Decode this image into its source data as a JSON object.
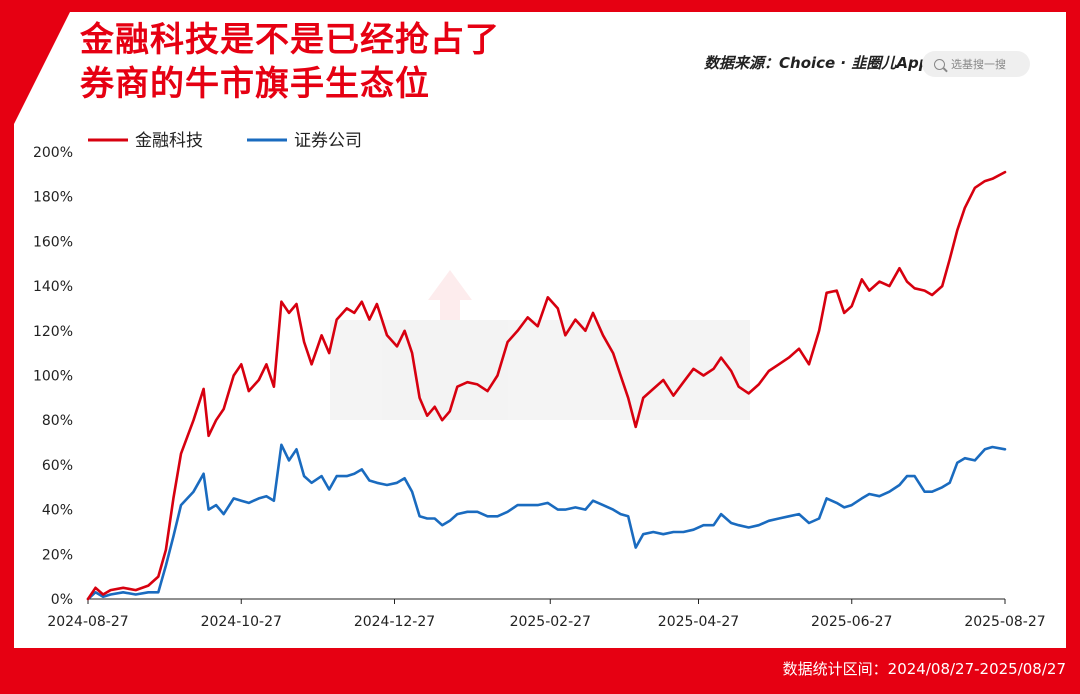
{
  "header": {
    "title_line1": "金融科技是不是已经抢占了",
    "title_line2": "券商的牛市旗手生态位",
    "source": "数据来源：Choice · 韭圈儿App",
    "search_placeholder": "选基搜一搜"
  },
  "footer": {
    "range": "数据统计区间：2024/08/27-2025/08/27"
  },
  "chart_data": {
    "type": "line",
    "x_ticks": [
      "2024-08-27",
      "2024-10-27",
      "2024-12-27",
      "2025-02-27",
      "2025-04-27",
      "2025-06-27",
      "2025-08-27"
    ],
    "y_ticks": [
      "0%",
      "20%",
      "40%",
      "60%",
      "80%",
      "100%",
      "120%",
      "140%",
      "160%",
      "180%",
      "200%"
    ],
    "ylim": [
      0,
      200
    ],
    "legend_position": "top-left",
    "series": [
      {
        "name": "金融科技",
        "color": "#d7000f",
        "points": [
          [
            "2024-08-27",
            0
          ],
          [
            "2024-08-30",
            5
          ],
          [
            "2024-09-02",
            2
          ],
          [
            "2024-09-05",
            4
          ],
          [
            "2024-09-10",
            5
          ],
          [
            "2024-09-15",
            4
          ],
          [
            "2024-09-20",
            6
          ],
          [
            "2024-09-24",
            10
          ],
          [
            "2024-09-27",
            22
          ],
          [
            "2024-09-30",
            45
          ],
          [
            "2024-10-03",
            65
          ],
          [
            "2024-10-08",
            80
          ],
          [
            "2024-10-12",
            94
          ],
          [
            "2024-10-14",
            73
          ],
          [
            "2024-10-17",
            80
          ],
          [
            "2024-10-20",
            85
          ],
          [
            "2024-10-24",
            100
          ],
          [
            "2024-10-27",
            105
          ],
          [
            "2024-10-30",
            93
          ],
          [
            "2024-11-03",
            98
          ],
          [
            "2024-11-06",
            105
          ],
          [
            "2024-11-09",
            95
          ],
          [
            "2024-11-12",
            133
          ],
          [
            "2024-11-15",
            128
          ],
          [
            "2024-11-18",
            132
          ],
          [
            "2024-11-21",
            115
          ],
          [
            "2024-11-24",
            105
          ],
          [
            "2024-11-28",
            118
          ],
          [
            "2024-12-01",
            110
          ],
          [
            "2024-12-04",
            125
          ],
          [
            "2024-12-08",
            130
          ],
          [
            "2024-12-11",
            128
          ],
          [
            "2024-12-14",
            133
          ],
          [
            "2024-12-17",
            125
          ],
          [
            "2024-12-20",
            132
          ],
          [
            "2024-12-24",
            118
          ],
          [
            "2024-12-28",
            113
          ],
          [
            "2024-12-31",
            120
          ],
          [
            "2025-01-03",
            110
          ],
          [
            "2025-01-06",
            90
          ],
          [
            "2025-01-09",
            82
          ],
          [
            "2025-01-12",
            86
          ],
          [
            "2025-01-15",
            80
          ],
          [
            "2025-01-18",
            84
          ],
          [
            "2025-01-21",
            95
          ],
          [
            "2025-01-25",
            97
          ],
          [
            "2025-01-29",
            96
          ],
          [
            "2025-02-02",
            93
          ],
          [
            "2025-02-06",
            100
          ],
          [
            "2025-02-10",
            115
          ],
          [
            "2025-02-14",
            120
          ],
          [
            "2025-02-18",
            126
          ],
          [
            "2025-02-22",
            122
          ],
          [
            "2025-02-26",
            135
          ],
          [
            "2025-03-02",
            130
          ],
          [
            "2025-03-05",
            118
          ],
          [
            "2025-03-09",
            125
          ],
          [
            "2025-03-13",
            120
          ],
          [
            "2025-03-16",
            128
          ],
          [
            "2025-03-20",
            118
          ],
          [
            "2025-03-24",
            110
          ],
          [
            "2025-03-27",
            100
          ],
          [
            "2025-03-30",
            90
          ],
          [
            "2025-04-02",
            77
          ],
          [
            "2025-04-05",
            90
          ],
          [
            "2025-04-09",
            94
          ],
          [
            "2025-04-13",
            98
          ],
          [
            "2025-04-17",
            91
          ],
          [
            "2025-04-21",
            97
          ],
          [
            "2025-04-25",
            103
          ],
          [
            "2025-04-29",
            100
          ],
          [
            "2025-05-03",
            103
          ],
          [
            "2025-05-06",
            108
          ],
          [
            "2025-05-10",
            102
          ],
          [
            "2025-05-13",
            95
          ],
          [
            "2025-05-17",
            92
          ],
          [
            "2025-05-21",
            96
          ],
          [
            "2025-05-25",
            102
          ],
          [
            "2025-05-29",
            105
          ],
          [
            "2025-06-02",
            108
          ],
          [
            "2025-06-06",
            112
          ],
          [
            "2025-06-10",
            105
          ],
          [
            "2025-06-14",
            120
          ],
          [
            "2025-06-17",
            137
          ],
          [
            "2025-06-21",
            138
          ],
          [
            "2025-06-24",
            128
          ],
          [
            "2025-06-27",
            131
          ],
          [
            "2025-07-01",
            143
          ],
          [
            "2025-07-04",
            138
          ],
          [
            "2025-07-08",
            142
          ],
          [
            "2025-07-12",
            140
          ],
          [
            "2025-07-16",
            148
          ],
          [
            "2025-07-19",
            142
          ],
          [
            "2025-07-22",
            139
          ],
          [
            "2025-07-26",
            138
          ],
          [
            "2025-07-29",
            136
          ],
          [
            "2025-08-02",
            140
          ],
          [
            "2025-08-05",
            152
          ],
          [
            "2025-08-08",
            165
          ],
          [
            "2025-08-11",
            175
          ],
          [
            "2025-08-15",
            184
          ],
          [
            "2025-08-19",
            187
          ],
          [
            "2025-08-22",
            188
          ],
          [
            "2025-08-27",
            191
          ]
        ]
      },
      {
        "name": "证券公司",
        "color": "#1a6bbf",
        "points": [
          [
            "2024-08-27",
            0
          ],
          [
            "2024-08-30",
            3
          ],
          [
            "2024-09-02",
            1
          ],
          [
            "2024-09-05",
            2
          ],
          [
            "2024-09-10",
            3
          ],
          [
            "2024-09-15",
            2
          ],
          [
            "2024-09-20",
            3
          ],
          [
            "2024-09-24",
            3
          ],
          [
            "2024-09-27",
            15
          ],
          [
            "2024-09-30",
            28
          ],
          [
            "2024-10-03",
            42
          ],
          [
            "2024-10-08",
            48
          ],
          [
            "2024-10-12",
            56
          ],
          [
            "2024-10-14",
            40
          ],
          [
            "2024-10-17",
            42
          ],
          [
            "2024-10-20",
            38
          ],
          [
            "2024-10-24",
            45
          ],
          [
            "2024-10-27",
            44
          ],
          [
            "2024-10-30",
            43
          ],
          [
            "2024-11-03",
            45
          ],
          [
            "2024-11-06",
            46
          ],
          [
            "2024-11-09",
            44
          ],
          [
            "2024-11-12",
            69
          ],
          [
            "2024-11-15",
            62
          ],
          [
            "2024-11-18",
            67
          ],
          [
            "2024-11-21",
            55
          ],
          [
            "2024-11-24",
            52
          ],
          [
            "2024-11-28",
            55
          ],
          [
            "2024-12-01",
            49
          ],
          [
            "2024-12-04",
            55
          ],
          [
            "2024-12-08",
            55
          ],
          [
            "2024-12-11",
            56
          ],
          [
            "2024-12-14",
            58
          ],
          [
            "2024-12-17",
            53
          ],
          [
            "2024-12-20",
            52
          ],
          [
            "2024-12-24",
            51
          ],
          [
            "2024-12-28",
            52
          ],
          [
            "2024-12-31",
            54
          ],
          [
            "2025-01-03",
            48
          ],
          [
            "2025-01-06",
            37
          ],
          [
            "2025-01-09",
            36
          ],
          [
            "2025-01-12",
            36
          ],
          [
            "2025-01-15",
            33
          ],
          [
            "2025-01-18",
            35
          ],
          [
            "2025-01-21",
            38
          ],
          [
            "2025-01-25",
            39
          ],
          [
            "2025-01-29",
            39
          ],
          [
            "2025-02-02",
            37
          ],
          [
            "2025-02-06",
            37
          ],
          [
            "2025-02-10",
            39
          ],
          [
            "2025-02-14",
            42
          ],
          [
            "2025-02-18",
            42
          ],
          [
            "2025-02-22",
            42
          ],
          [
            "2025-02-26",
            43
          ],
          [
            "2025-03-02",
            40
          ],
          [
            "2025-03-05",
            40
          ],
          [
            "2025-03-09",
            41
          ],
          [
            "2025-03-13",
            40
          ],
          [
            "2025-03-16",
            44
          ],
          [
            "2025-03-20",
            42
          ],
          [
            "2025-03-24",
            40
          ],
          [
            "2025-03-27",
            38
          ],
          [
            "2025-03-30",
            37
          ],
          [
            "2025-04-02",
            23
          ],
          [
            "2025-04-05",
            29
          ],
          [
            "2025-04-09",
            30
          ],
          [
            "2025-04-13",
            29
          ],
          [
            "2025-04-17",
            30
          ],
          [
            "2025-04-21",
            30
          ],
          [
            "2025-04-25",
            31
          ],
          [
            "2025-04-29",
            33
          ],
          [
            "2025-05-03",
            33
          ],
          [
            "2025-05-06",
            38
          ],
          [
            "2025-05-10",
            34
          ],
          [
            "2025-05-13",
            33
          ],
          [
            "2025-05-17",
            32
          ],
          [
            "2025-05-21",
            33
          ],
          [
            "2025-05-25",
            35
          ],
          [
            "2025-05-29",
            36
          ],
          [
            "2025-06-02",
            37
          ],
          [
            "2025-06-06",
            38
          ],
          [
            "2025-06-10",
            34
          ],
          [
            "2025-06-14",
            36
          ],
          [
            "2025-06-17",
            45
          ],
          [
            "2025-06-21",
            43
          ],
          [
            "2025-06-24",
            41
          ],
          [
            "2025-06-27",
            42
          ],
          [
            "2025-07-01",
            45
          ],
          [
            "2025-07-04",
            47
          ],
          [
            "2025-07-08",
            46
          ],
          [
            "2025-07-12",
            48
          ],
          [
            "2025-07-16",
            51
          ],
          [
            "2025-07-19",
            55
          ],
          [
            "2025-07-22",
            55
          ],
          [
            "2025-07-26",
            48
          ],
          [
            "2025-07-29",
            48
          ],
          [
            "2025-08-02",
            50
          ],
          [
            "2025-08-05",
            52
          ],
          [
            "2025-08-08",
            61
          ],
          [
            "2025-08-11",
            63
          ],
          [
            "2025-08-15",
            62
          ],
          [
            "2025-08-19",
            67
          ],
          [
            "2025-08-22",
            68
          ],
          [
            "2025-08-27",
            67
          ]
        ]
      }
    ]
  }
}
